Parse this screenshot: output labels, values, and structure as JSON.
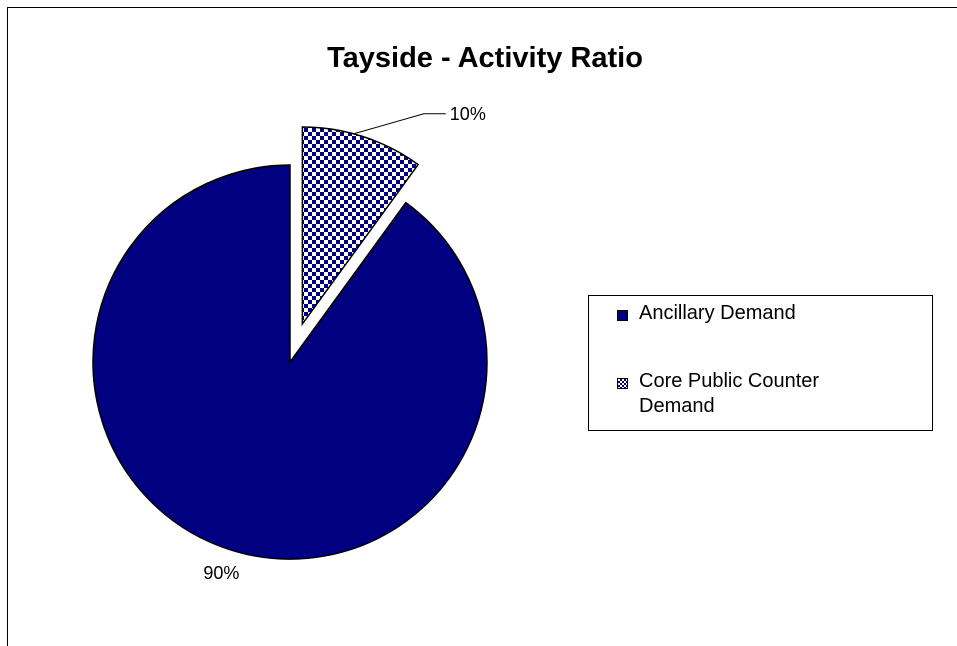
{
  "chart_data": {
    "type": "pie",
    "title": "Tayside - Activity Ratio",
    "slices": [
      {
        "label": "Ancillary Demand",
        "value": 90,
        "data_label": "90%",
        "color": "#000080",
        "pattern": "solid"
      },
      {
        "label": "Core Public Counter Demand",
        "value": 10,
        "data_label": "10%",
        "color": "#000080",
        "pattern": "checker",
        "exploded": true
      }
    ],
    "legend_position": "right"
  }
}
